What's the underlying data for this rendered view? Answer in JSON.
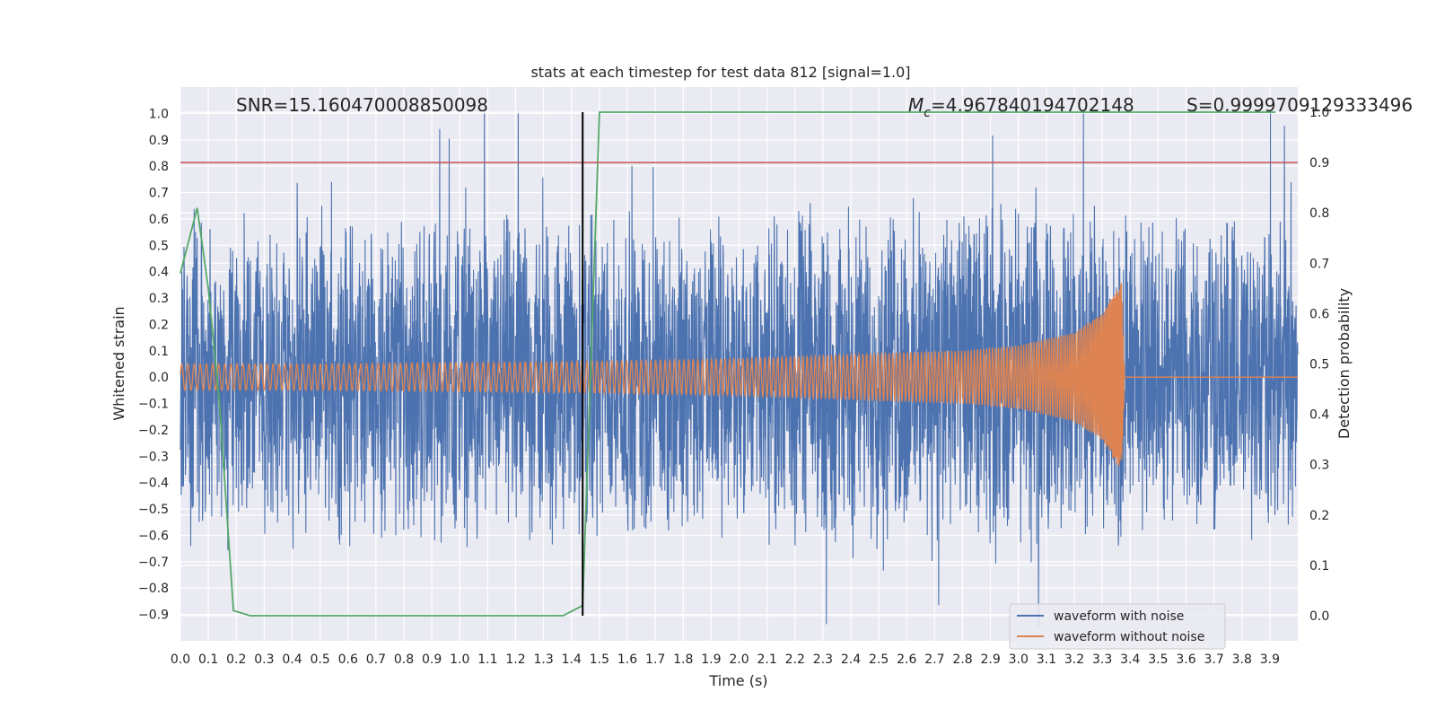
{
  "chart_data": {
    "type": "line",
    "title": "stats at each timestep for test data 812 [signal=1.0]",
    "xlabel": "Time (s)",
    "ylabel": "Whitened strain",
    "y2label": "Detection probability",
    "xlim": [
      0.0,
      4.0
    ],
    "ylim": [
      -1.0,
      1.1
    ],
    "y2lim": [
      -0.05,
      1.05
    ],
    "x_ticks": [
      "0.0",
      "0.1",
      "0.2",
      "0.3",
      "0.4",
      "0.5",
      "0.6",
      "0.7",
      "0.8",
      "0.9",
      "1.0",
      "1.1",
      "1.2",
      "1.3",
      "1.4",
      "1.5",
      "1.6",
      "1.7",
      "1.8",
      "1.9",
      "2.0",
      "2.1",
      "2.2",
      "2.3",
      "2.4",
      "2.5",
      "2.6",
      "2.7",
      "2.8",
      "2.9",
      "3.0",
      "3.1",
      "3.2",
      "3.3",
      "3.4",
      "3.5",
      "3.6",
      "3.7",
      "3.8",
      "3.9"
    ],
    "y_ticks": [
      "1.0",
      "0.9",
      "0.8",
      "0.7",
      "0.6",
      "0.5",
      "0.4",
      "0.3",
      "0.2",
      "0.1",
      "0.0",
      "−0.1",
      "−0.2",
      "−0.3",
      "−0.4",
      "−0.5",
      "−0.6",
      "−0.7",
      "−0.8",
      "−0.9"
    ],
    "y2_ticks": [
      "1.0",
      "0.9",
      "0.8",
      "0.7",
      "0.6",
      "0.5",
      "0.4",
      "0.3",
      "0.2",
      "0.1",
      "0.0"
    ],
    "grid": true,
    "legend_position": "bottom-right",
    "annotations": {
      "snr": "SNR=15.160470008850098",
      "mc_symbol": "M",
      "mc_sub": "c",
      "mc_value": "=4.967840194702148",
      "s_text": "S=0.9999709129333496"
    },
    "series": [
      {
        "name": "waveform with noise",
        "color": "#4c72b0",
        "description_values": "noise envelope approx ±0.4 to ±0.8, peak spikes near 1.0",
        "x": [
          0.0,
          0.5,
          1.0,
          1.5,
          2.0,
          2.5,
          3.0,
          3.5,
          4.0
        ],
        "amplitude": [
          0.45,
          0.45,
          0.45,
          0.45,
          0.45,
          0.47,
          0.5,
          0.45,
          0.45
        ]
      },
      {
        "name": "waveform without noise",
        "color": "#dd8452",
        "x": [
          0.0,
          0.5,
          1.0,
          1.5,
          2.0,
          2.5,
          2.8,
          3.0,
          3.2,
          3.3,
          3.35,
          3.37,
          3.38,
          4.0
        ],
        "amplitude": [
          0.05,
          0.05,
          0.055,
          0.06,
          0.07,
          0.09,
          0.1,
          0.12,
          0.17,
          0.24,
          0.33,
          0.36,
          0.0,
          0.0
        ]
      },
      {
        "name": "detection probability",
        "color": "#55a868",
        "axis": "right",
        "x": [
          0.0,
          0.06,
          0.1,
          0.14,
          0.19,
          0.25,
          1.1,
          1.37,
          1.44,
          1.5,
          3.92
        ],
        "values": [
          0.68,
          0.81,
          0.65,
          0.42,
          0.01,
          0.0,
          0.0,
          0.0,
          0.02,
          1.0,
          1.0
        ]
      }
    ],
    "threshold_line": {
      "value": 0.9,
      "axis": "right",
      "color": "#c44e52"
    },
    "marker_line": {
      "x": 1.44,
      "y2_from": 0.0,
      "y2_to": 1.0,
      "color": "#000000"
    }
  }
}
